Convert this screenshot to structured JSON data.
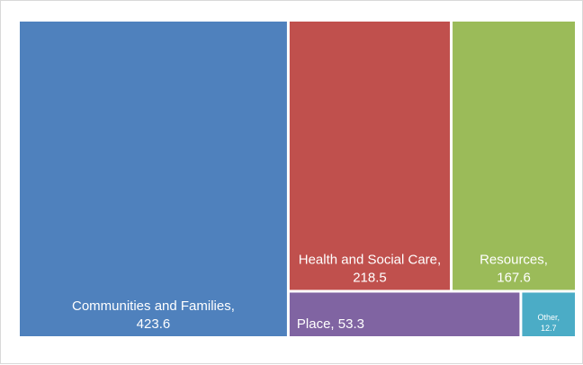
{
  "chart_data": {
    "type": "treemap",
    "title": "",
    "items": [
      {
        "label": "Communities and Families, 423.6",
        "name": "Communities and Families",
        "value": 423.6,
        "color": "#4f81bd"
      },
      {
        "label": "Health and Social Care, 218.5",
        "name": "Health and Social Care",
        "value": 218.5,
        "color": "#c0504d"
      },
      {
        "label": "Resources, 167.6",
        "name": "Resources",
        "value": 167.6,
        "color": "#9bbb59"
      },
      {
        "label": "Place, 53.3",
        "name": "Place",
        "value": 53.3,
        "color": "#8064a2"
      },
      {
        "label": "Other, 12.7",
        "name": "Other",
        "value": 12.7,
        "color": "#4bacc6"
      }
    ]
  }
}
